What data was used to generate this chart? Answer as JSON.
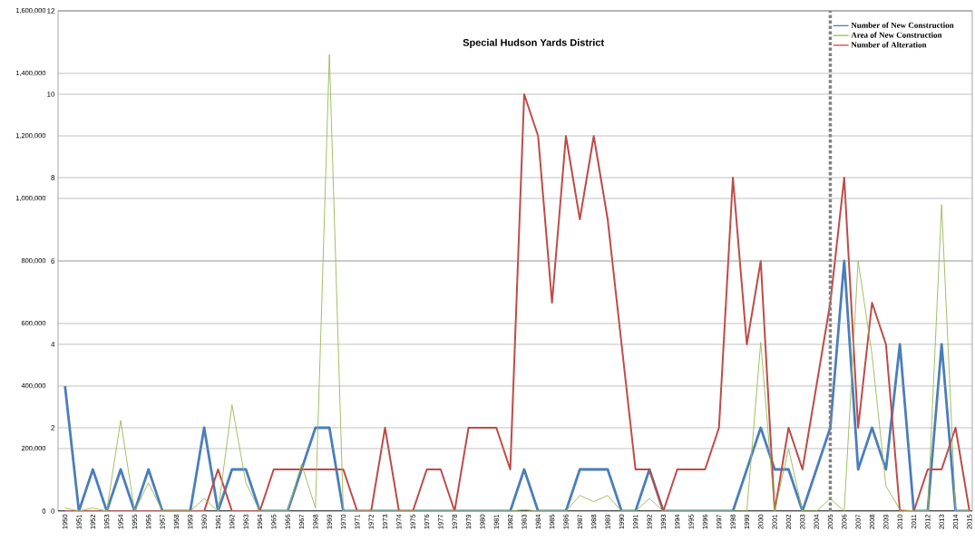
{
  "chart_data": {
    "type": "line",
    "title": "Special Hudson Yards District",
    "x": [
      1950,
      1951,
      1952,
      1953,
      1954,
      1955,
      1956,
      1957,
      1958,
      1959,
      1960,
      1961,
      1962,
      1963,
      1964,
      1965,
      1966,
      1967,
      1968,
      1969,
      1970,
      1971,
      1972,
      1973,
      1974,
      1975,
      1976,
      1977,
      1978,
      1979,
      1980,
      1981,
      1982,
      1983,
      1984,
      1985,
      1986,
      1987,
      1988,
      1989,
      1990,
      1991,
      1992,
      1993,
      1994,
      1995,
      1996,
      1997,
      1998,
      1999,
      2000,
      2001,
      2002,
      2003,
      2004,
      2005,
      2006,
      2007,
      2008,
      2009,
      2010,
      2011,
      2012,
      2013,
      2014,
      2015
    ],
    "xlim": [
      1949.5,
      2015.2
    ],
    "xticks": [
      1950,
      1951,
      1952,
      1953,
      1954,
      1955,
      1956,
      1957,
      1958,
      1959,
      1960,
      1961,
      1962,
      1963,
      1964,
      1965,
      1966,
      1967,
      1968,
      1969,
      1970,
      1971,
      1972,
      1973,
      1974,
      1975,
      1976,
      1977,
      1978,
      1979,
      1980,
      1981,
      1982,
      1983,
      1984,
      1985,
      1986,
      1987,
      1988,
      1989,
      1990,
      1991,
      1992,
      1993,
      1994,
      1995,
      1996,
      1997,
      1998,
      1999,
      2000,
      2001,
      2002,
      2003,
      2004,
      2005,
      2006,
      2007,
      2008,
      2009,
      2010,
      2011,
      2012,
      2013,
      2014,
      2015
    ],
    "ylim": [
      0,
      12
    ],
    "yticks": [
      0,
      2,
      4,
      6,
      8,
      10,
      12
    ],
    "y2lim": [
      0,
      1600000
    ],
    "y2ticks": [
      {
        "value": 0,
        "label": "0"
      },
      {
        "value": 200000,
        "label": "200,000"
      },
      {
        "value": 400000,
        "label": "400,000"
      },
      {
        "value": 600000,
        "label": "600,000"
      },
      {
        "value": 800000,
        "label": "800,000"
      },
      {
        "value": 1000000,
        "label": "1,000,000"
      },
      {
        "value": 1200000,
        "label": "1,200,000"
      },
      {
        "value": 1400000,
        "label": "1,400,000"
      },
      {
        "value": 1600000,
        "label": "1,600,000"
      }
    ],
    "grid": "y",
    "legend": "top right",
    "line_style": "solid",
    "ref_lines": [
      {
        "axis": "x",
        "value": 2005,
        "color": "#808080",
        "line_style": "dotted"
      }
    ],
    "series": [
      {
        "name": "Number of New Construction",
        "color": "#4a7ebb",
        "axis": "y",
        "values": [
          3,
          0,
          1,
          0,
          1,
          0,
          1,
          0,
          0,
          0,
          2,
          0,
          1,
          1,
          0,
          0,
          0,
          1,
          2,
          2,
          0,
          0,
          0,
          0,
          0,
          0,
          0,
          0,
          0,
          0,
          0,
          0,
          0,
          1,
          0,
          0,
          0,
          1,
          1,
          1,
          0,
          0,
          1,
          0,
          0,
          0,
          0,
          0,
          0,
          1,
          2,
          1,
          1,
          0,
          1,
          2,
          6,
          1,
          2,
          1,
          4,
          0,
          0,
          4,
          0,
          0
        ]
      },
      {
        "name": "Area of New Construction",
        "color": "#98b954",
        "axis": "y2",
        "values": [
          10000,
          0,
          10000,
          0,
          290000,
          0,
          90000,
          0,
          0,
          0,
          40000,
          0,
          340000,
          90000,
          0,
          0,
          0,
          150000,
          10000,
          1460000,
          0,
          0,
          0,
          0,
          0,
          0,
          0,
          0,
          0,
          0,
          0,
          0,
          0,
          5000,
          0,
          0,
          0,
          50000,
          30000,
          50000,
          0,
          0,
          40000,
          0,
          0,
          0,
          0,
          0,
          0,
          0,
          540000,
          0,
          200000,
          0,
          0,
          40000,
          0,
          800000,
          500000,
          80000,
          5000,
          0,
          0,
          980000,
          0,
          0
        ]
      },
      {
        "name": "Number of Alteration",
        "color": "#be4b48",
        "axis": "y",
        "values": [
          0,
          0,
          0,
          0,
          0,
          0,
          0,
          0,
          0,
          0,
          0,
          1,
          0,
          0,
          0,
          1,
          1,
          1,
          1,
          1,
          1,
          0,
          0,
          2,
          0,
          0,
          1,
          1,
          0,
          2,
          2,
          2,
          1,
          10,
          9,
          5,
          9,
          7,
          9,
          7,
          4,
          1,
          1,
          0,
          1,
          1,
          1,
          2,
          8,
          4,
          6,
          0,
          2,
          1,
          3,
          5,
          8,
          2,
          5,
          4,
          0,
          0,
          1,
          1,
          2,
          0
        ]
      }
    ]
  }
}
